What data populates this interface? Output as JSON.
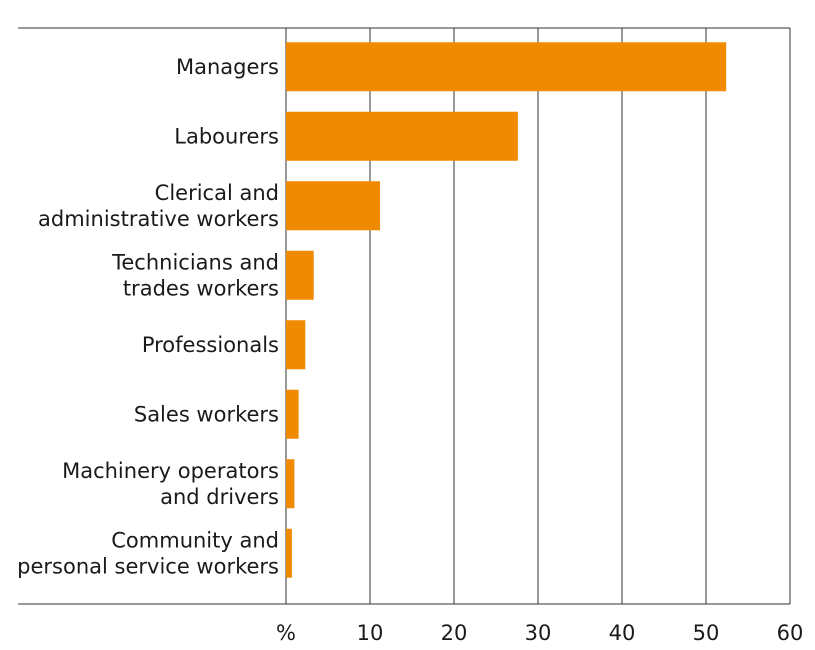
{
  "chart_data": {
    "type": "bar",
    "orientation": "horizontal",
    "categories": [
      [
        "Managers"
      ],
      [
        "Labourers"
      ],
      [
        "Clerical and",
        "administrative workers"
      ],
      [
        "Technicians and",
        "trades workers"
      ],
      [
        "Professionals"
      ],
      [
        "Sales workers"
      ],
      [
        "Machinery operators",
        "and drivers"
      ],
      [
        "Community and",
        "personal service workers"
      ]
    ],
    "values": [
      52.4,
      27.6,
      11.2,
      3.3,
      2.3,
      1.5,
      1.0,
      0.7
    ],
    "x_ticks": [
      "%",
      "10",
      "20",
      "30",
      "40",
      "50",
      "60"
    ],
    "xlim": [
      0,
      60
    ],
    "grid": "vertical",
    "bar_color": "#F08A00",
    "axis_color": "#333333"
  }
}
